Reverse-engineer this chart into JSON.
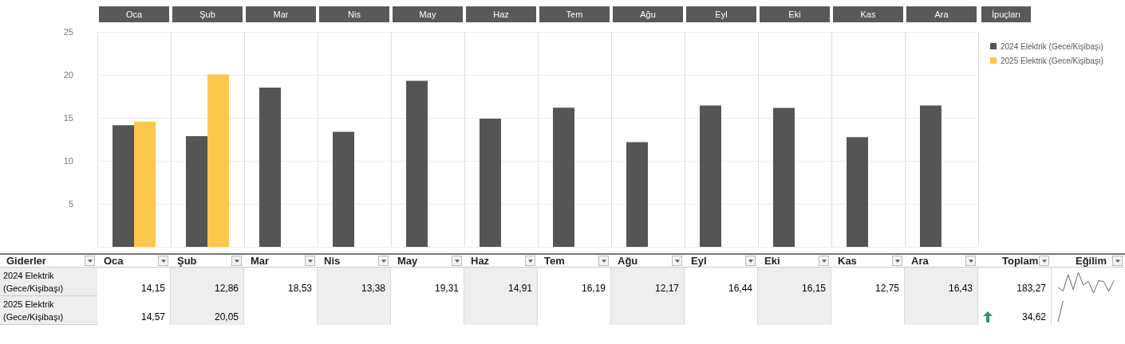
{
  "chart_data": {
    "type": "bar",
    "categories": [
      "Oca",
      "Şub",
      "Mar",
      "Nis",
      "May",
      "Haz",
      "Tem",
      "Ağu",
      "Eyl",
      "Eki",
      "Kas",
      "Ara"
    ],
    "series": [
      {
        "name": "2024 Elektrik (Gece/Kişibaşı)",
        "color": "#555555",
        "values": [
          14.15,
          12.86,
          18.53,
          13.38,
          19.31,
          14.91,
          16.19,
          12.17,
          16.44,
          16.15,
          12.75,
          16.43
        ],
        "value_labels": [
          "14,15",
          "12,86",
          "18,53",
          "13,38",
          "19,31",
          "14,91",
          "16,19",
          "12,17",
          "16,44",
          "16,15",
          "12,75",
          "16,43"
        ]
      },
      {
        "name": "2025 Elektrik (Gece/Kişibaşı)",
        "color": "#fcc84a",
        "values": [
          14.57,
          20.05,
          null,
          null,
          null,
          null,
          null,
          null,
          null,
          null,
          null,
          null
        ],
        "value_labels": [
          "14,57",
          "20,05",
          null,
          null,
          null,
          null,
          null,
          null,
          null,
          null,
          null,
          null
        ]
      }
    ],
    "ylim": [
      0,
      25
    ],
    "yticks": [
      5,
      10,
      15,
      20,
      25
    ],
    "grid": true,
    "legend": "top right",
    "annotations": [
      "İpuçları",
      "Giderler",
      "Toplam",
      "Eğilim",
      "183,27",
      "34,62"
    ]
  }
}
